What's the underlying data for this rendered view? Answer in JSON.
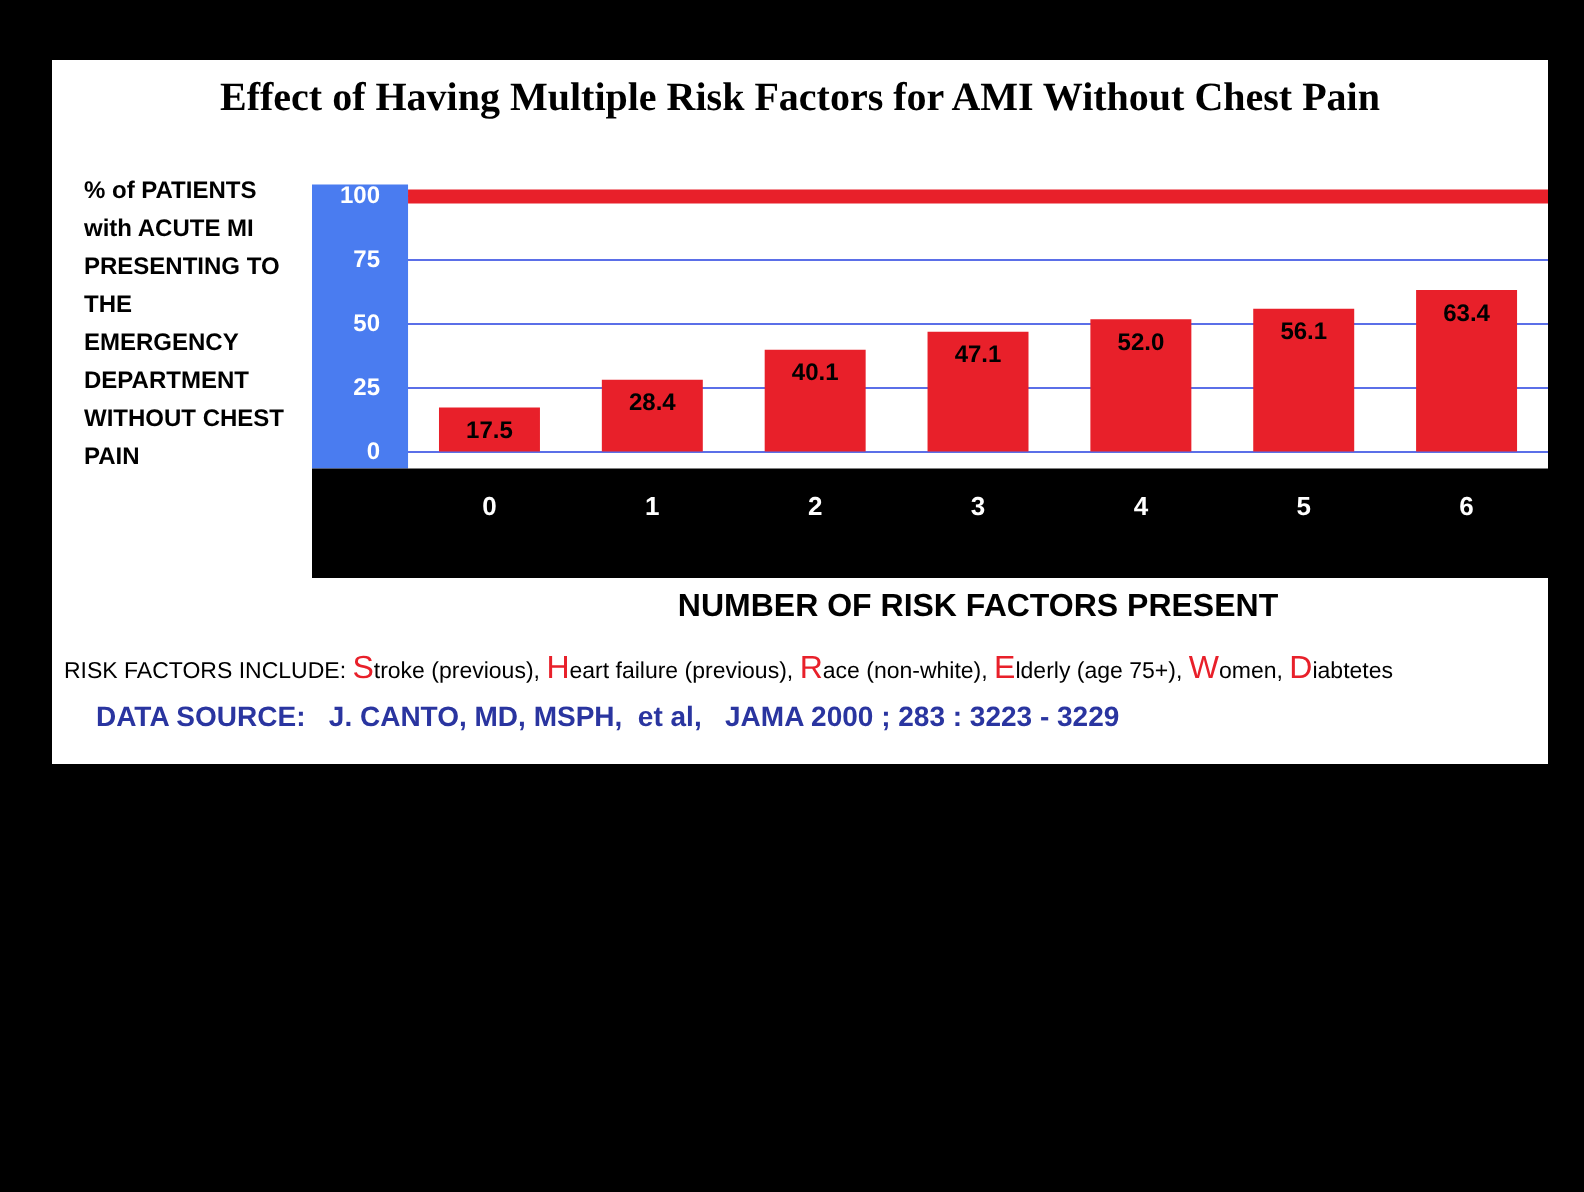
{
  "chart_data": {
    "type": "bar",
    "title": "Effect of Having Multiple Risk Factors for AMI Without Chest Pain",
    "xlabel": "NUMBER OF RISK FACTORS PRESENT",
    "ylabel": "% of PATIENTS with ACUTE MI PRESENTING TO THE EMERGENCY DEPARTMENT WITHOUT CHEST PAIN",
    "categories": [
      "0",
      "1",
      "2",
      "3",
      "4",
      "5",
      "6"
    ],
    "values": [
      17.5,
      28.4,
      40.1,
      47.1,
      52.0,
      56.1,
      63.4
    ],
    "value_labels": [
      "17.5",
      "28.4",
      "40.1",
      "47.1",
      "52.0",
      "56.1",
      "63.4"
    ],
    "color": "#e8202a",
    "ylim": [
      0,
      100
    ],
    "yticks": [
      0,
      25,
      50,
      75,
      100
    ],
    "grid": "y",
    "ref_lines": [
      {
        "axis": "y",
        "value": 100,
        "color": "#e8202a"
      }
    ],
    "annotations": [
      "RISK FACTORS INCLUDE: Stroke (previous), Heart failure (previous), Race (non-white), Elderly (age 75+), Women, Diabtetes",
      "DATA SOURCE:   J. CANTO, MD, MSPH,  et al,   JAMA 2000 ; 283 : 3223 - 3229"
    ]
  }
}
